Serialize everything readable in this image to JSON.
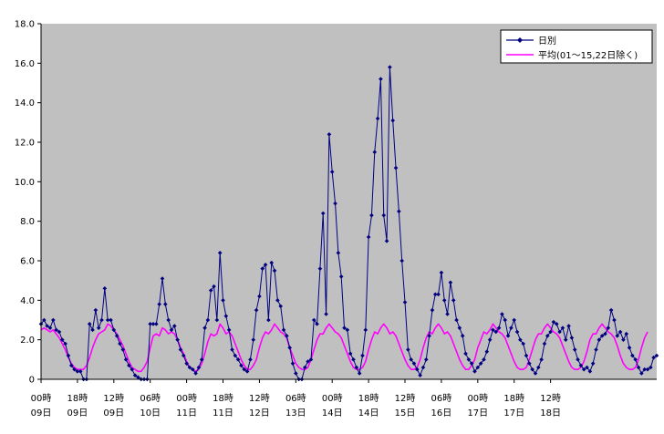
{
  "chart_data": {
    "type": "line",
    "title": "",
    "xlabel": "",
    "ylabel": "",
    "ylim": [
      0,
      18
    ],
    "yticks": [
      0,
      2,
      4,
      6,
      8,
      10,
      12,
      14,
      16,
      18
    ],
    "ytick_labels": [
      "0",
      "2.0",
      "4.0",
      "6.0",
      "8.0",
      "10.0",
      "12.0",
      "14.0",
      "16.0",
      "18.0"
    ],
    "grid": false,
    "plot_background": "#c0c0c0",
    "legend_position": "top-right",
    "x_ticks": [
      {
        "index": 0,
        "line1": "00時",
        "line2": "09日"
      },
      {
        "index": 12,
        "line1": "18時",
        "line2": "09日"
      },
      {
        "index": 24,
        "line1": "12時",
        "line2": "09日"
      },
      {
        "index": 36,
        "line1": "06時",
        "line2": "10日"
      },
      {
        "index": 48,
        "line1": "00時",
        "line2": "11日"
      },
      {
        "index": 60,
        "line1": "18時",
        "line2": "11日"
      },
      {
        "index": 72,
        "line1": "12時",
        "line2": "12日"
      },
      {
        "index": 84,
        "line1": "06時",
        "line2": "13日"
      },
      {
        "index": 96,
        "line1": "00時",
        "line2": "14日"
      },
      {
        "index": 108,
        "line1": "18時",
        "line2": "14日"
      },
      {
        "index": 120,
        "line1": "12時",
        "line2": "15日"
      },
      {
        "index": 132,
        "line1": "06時",
        "line2": "16日"
      },
      {
        "index": 144,
        "line1": "00時",
        "line2": "17日"
      },
      {
        "index": 156,
        "line1": "18時",
        "line2": "17日"
      },
      {
        "index": 168,
        "line1": "12時",
        "line2": "18日"
      }
    ],
    "series": [
      {
        "name": "日別",
        "color": "#000080",
        "marker": "diamond",
        "values": [
          2.8,
          3.0,
          2.7,
          2.6,
          3.0,
          2.5,
          2.4,
          2.0,
          1.8,
          1.2,
          0.7,
          0.5,
          0.4,
          0.4,
          0.0,
          0.0,
          2.8,
          2.5,
          3.5,
          2.6,
          3.0,
          4.6,
          3.0,
          3.0,
          2.5,
          2.2,
          1.8,
          1.5,
          1.0,
          0.7,
          0.5,
          0.2,
          0.1,
          0.0,
          0.0,
          0.0,
          2.8,
          2.8,
          2.8,
          3.8,
          5.1,
          3.8,
          3.0,
          2.5,
          2.7,
          2.0,
          1.5,
          1.2,
          0.8,
          0.6,
          0.5,
          0.3,
          0.6,
          1.0,
          2.6,
          3.0,
          4.5,
          4.7,
          3.0,
          6.4,
          4.0,
          3.2,
          2.5,
          1.5,
          1.2,
          1.0,
          0.7,
          0.5,
          0.4,
          1.0,
          2.0,
          3.5,
          4.2,
          5.6,
          5.8,
          3.0,
          5.9,
          5.5,
          4.0,
          3.7,
          2.5,
          2.2,
          1.6,
          0.8,
          0.3,
          0.0,
          0.0,
          0.6,
          0.9,
          1.0,
          3.0,
          2.8,
          5.6,
          8.4,
          3.3,
          12.4,
          10.5,
          8.9,
          6.4,
          5.2,
          2.6,
          2.5,
          1.3,
          1.0,
          0.6,
          0.3,
          1.2,
          2.5,
          7.2,
          8.3,
          11.5,
          13.2,
          15.2,
          8.3,
          7.0,
          15.8,
          13.1,
          10.7,
          8.5,
          6.0,
          3.9,
          1.5,
          1.0,
          0.8,
          0.5,
          0.2,
          0.6,
          1.0,
          2.2,
          3.5,
          4.3,
          4.3,
          5.4,
          4.0,
          3.3,
          4.9,
          4.0,
          3.0,
          2.6,
          2.2,
          1.3,
          1.0,
          0.8,
          0.4,
          0.6,
          0.8,
          1.0,
          1.4,
          2.0,
          2.5,
          2.4,
          2.6,
          3.3,
          3.0,
          2.2,
          2.6,
          3.0,
          2.4,
          2.0,
          1.8,
          1.2,
          0.8,
          0.5,
          0.3,
          0.6,
          1.0,
          1.8,
          2.2,
          2.4,
          2.9,
          2.8,
          2.4,
          2.6,
          2.0,
          2.7,
          2.1,
          1.5,
          1.0,
          0.7,
          0.5,
          0.6,
          0.4,
          0.8,
          1.5,
          2.0,
          2.2,
          2.3,
          2.6,
          3.5,
          3.0,
          2.2,
          2.4,
          2.0,
          2.3,
          1.6,
          1.2,
          1.0,
          0.6,
          0.3,
          0.5,
          0.5,
          0.6,
          1.1,
          1.2
        ]
      },
      {
        "name": "平均(01～15,22日除く)",
        "color": "#ff00ff",
        "marker": "none",
        "values": [
          2.5,
          2.6,
          2.5,
          2.4,
          2.5,
          2.3,
          2.1,
          1.8,
          1.5,
          1.1,
          0.8,
          0.6,
          0.5,
          0.5,
          0.5,
          0.7,
          1.1,
          1.6,
          2.0,
          2.3,
          2.4,
          2.5,
          2.8,
          2.7,
          2.5,
          2.3,
          2.0,
          1.7,
          1.3,
          0.9,
          0.6,
          0.5,
          0.4,
          0.4,
          0.6,
          0.9,
          1.6,
          2.2,
          2.3,
          2.2,
          2.6,
          2.5,
          2.3,
          2.4,
          2.3,
          2.0,
          1.6,
          1.3,
          0.9,
          0.6,
          0.5,
          0.4,
          0.5,
          0.8,
          1.3,
          1.9,
          2.3,
          2.2,
          2.3,
          2.8,
          2.6,
          2.3,
          2.4,
          2.2,
          1.8,
          1.4,
          1.0,
          0.7,
          0.5,
          0.5,
          0.7,
          1.0,
          1.6,
          2.1,
          2.4,
          2.3,
          2.5,
          2.8,
          2.6,
          2.4,
          2.3,
          2.1,
          1.6,
          1.2,
          0.8,
          0.6,
          0.5,
          0.5,
          0.6,
          1.0,
          1.5,
          2.0,
          2.3,
          2.3,
          2.6,
          2.8,
          2.6,
          2.4,
          2.3,
          2.1,
          1.7,
          1.3,
          0.9,
          0.6,
          0.5,
          0.5,
          0.6,
          0.9,
          1.5,
          2.0,
          2.4,
          2.3,
          2.6,
          2.8,
          2.6,
          2.3,
          2.4,
          2.2,
          1.8,
          1.4,
          1.0,
          0.7,
          0.5,
          0.5,
          0.6,
          1.0,
          1.6,
          2.1,
          2.4,
          2.3,
          2.6,
          2.8,
          2.6,
          2.3,
          2.4,
          2.2,
          1.8,
          1.4,
          1.0,
          0.7,
          0.5,
          0.5,
          0.7,
          1.0,
          1.6,
          2.0,
          2.4,
          2.3,
          2.5,
          2.8,
          2.6,
          2.4,
          2.3,
          2.1,
          1.7,
          1.3,
          0.9,
          0.6,
          0.5,
          0.5,
          0.6,
          1.0,
          1.5,
          2.0,
          2.3,
          2.3,
          2.6,
          2.8,
          2.6,
          2.4,
          2.3,
          2.1,
          1.7,
          1.3,
          0.9,
          0.6,
          0.5,
          0.5,
          0.6,
          0.9,
          1.4,
          2.0,
          2.3,
          2.3,
          2.6,
          2.8,
          2.6,
          2.4,
          2.3,
          2.1,
          1.7,
          1.2,
          0.8,
          0.6,
          0.5,
          0.5,
          0.6,
          1.0,
          1.6,
          2.1,
          2.4
        ]
      }
    ]
  }
}
